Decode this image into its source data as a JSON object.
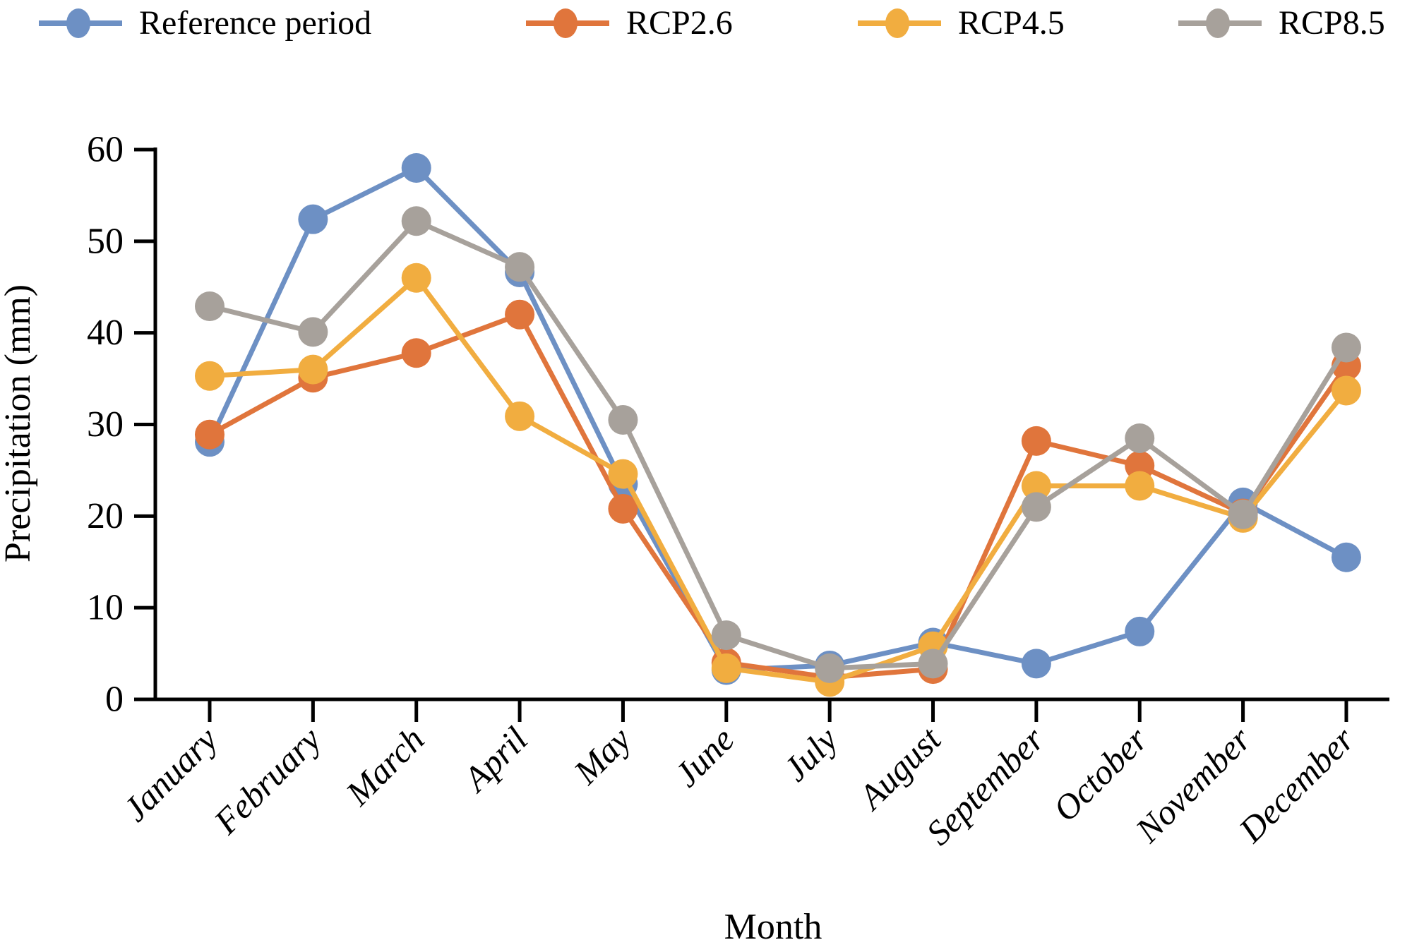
{
  "chart_data": {
    "type": "line",
    "title": "",
    "xlabel": "Month",
    "ylabel": "Precipitation (mm)",
    "ylim": [
      0,
      60
    ],
    "yticks": [
      0,
      10,
      20,
      30,
      40,
      50,
      60
    ],
    "grid": "off",
    "legend_position": "top",
    "categories": [
      "January",
      "February",
      "March",
      "April",
      "May",
      "June",
      "July",
      "August",
      "September",
      "October",
      "November",
      "December"
    ],
    "series": [
      {
        "name": "Reference period",
        "color": "#6d90c4",
        "values": [
          28.1,
          52.4,
          58.0,
          46.6,
          23.5,
          3.2,
          3.7,
          6.2,
          3.9,
          7.4,
          21.5,
          15.5
        ]
      },
      {
        "name": "RCP2.6",
        "color": "#e0753c",
        "values": [
          28.9,
          35.1,
          37.8,
          42.0,
          20.8,
          4.0,
          2.4,
          3.3,
          28.2,
          25.5,
          20.3,
          36.4
        ]
      },
      {
        "name": "RCP4.5",
        "color": "#f1ad40",
        "values": [
          35.3,
          36.0,
          46.0,
          30.9,
          24.6,
          3.4,
          1.9,
          5.8,
          23.3,
          23.3,
          19.8,
          33.7
        ]
      },
      {
        "name": "RCP8.5",
        "color": "#a7a19b",
        "values": [
          42.9,
          40.1,
          52.2,
          47.2,
          30.5,
          7.0,
          3.4,
          3.9,
          21.0,
          28.5,
          20.2,
          38.4
        ]
      }
    ]
  }
}
